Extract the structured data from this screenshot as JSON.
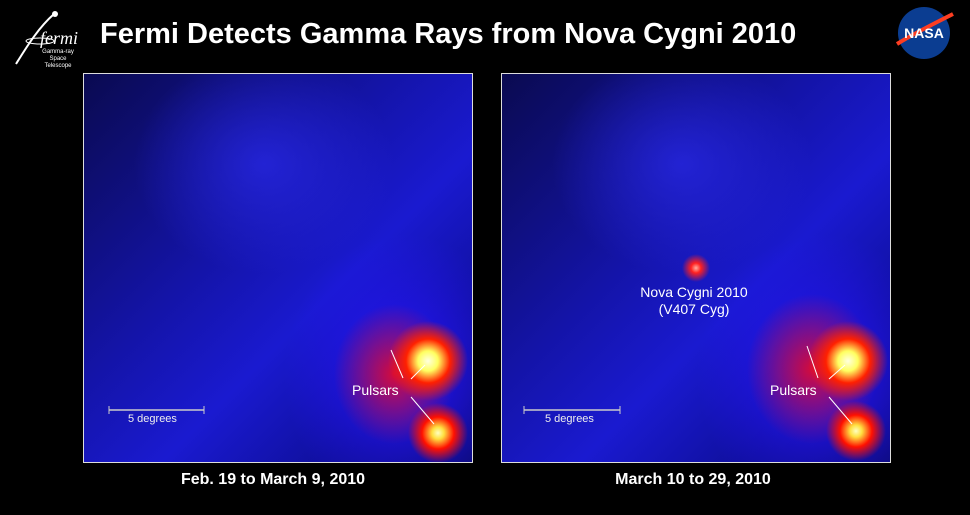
{
  "title": "Fermi Detects Gamma Rays from Nova Cygni 2010",
  "logos": {
    "fermi": {
      "word": "fermi",
      "subtitle_line1": "Gamma-ray",
      "subtitle_line2": "Space Telescope"
    },
    "nasa": {
      "word": "NASA"
    }
  },
  "panels": [
    {
      "caption": "Feb. 19 to March 9, 2010",
      "scale_label": "5 degrees",
      "pulsar_label": "Pulsars"
    },
    {
      "caption": "March 10 to 29, 2010",
      "scale_label": "5 degrees",
      "pulsar_label": "Pulsars",
      "nova_label_line1": "Nova Cygni 2010",
      "nova_label_line2": "(V407 Cyg)"
    }
  ],
  "colors": {
    "background": "#000000",
    "sky_low": "#06061e",
    "sky_mid": "#2020e0",
    "hot": "#ff1010",
    "peak": "#ffffd0"
  }
}
